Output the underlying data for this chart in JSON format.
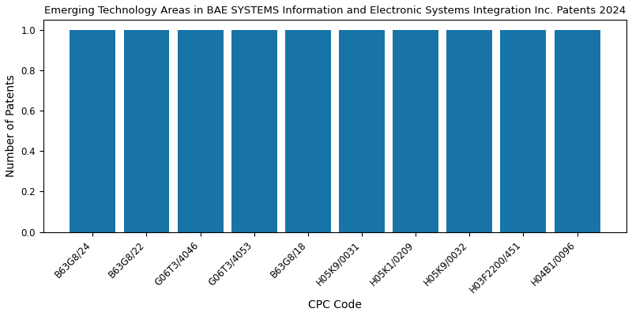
{
  "title": "Emerging Technology Areas in BAE SYSTEMS Information and Electronic Systems Integration Inc. Patents 2024",
  "xlabel": "CPC Code",
  "ylabel": "Number of Patents",
  "categories": [
    "B63G8/24",
    "B63G8/22",
    "G06T3/4046",
    "G06T3/4053",
    "B63G8/18",
    "H05K9/0031",
    "H05K1/0209",
    "H05K9/0032",
    "H03F2200/451",
    "H04B1/0096"
  ],
  "values": [
    1,
    1,
    1,
    1,
    1,
    1,
    1,
    1,
    1,
    1
  ],
  "bar_color": "#1874a7",
  "ylim": [
    0,
    1.05
  ],
  "yticks": [
    0.0,
    0.2,
    0.4,
    0.6,
    0.8,
    1.0
  ],
  "title_fontsize": 9.5,
  "label_fontsize": 10,
  "tick_fontsize": 8.5,
  "bar_width": 0.85,
  "figsize": [
    8.0,
    4.0
  ],
  "dpi": 100
}
